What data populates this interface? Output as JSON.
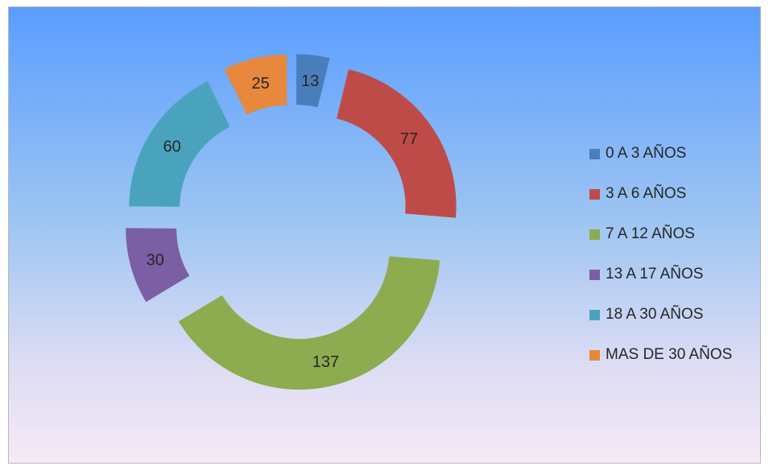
{
  "chart_data": {
    "type": "pie",
    "variant": "exploded-doughnut",
    "categories": [
      "0 A 3 AÑOS",
      "3 A 6 AÑOS",
      "7 A 12 AÑOS",
      "13 A 17 AÑOS",
      "18 A 30 AÑOS",
      "MAS DE 30 AÑOS"
    ],
    "values": [
      13,
      77,
      137,
      30,
      60,
      25
    ],
    "colors": [
      "#4a7ebb",
      "#be4b48",
      "#8cac4f",
      "#7b5ea3",
      "#4aa3bd",
      "#e8883c"
    ],
    "data_labels": [
      "13",
      "77",
      "137",
      "30",
      "60",
      "25"
    ],
    "legend_position": "right",
    "title": ""
  }
}
